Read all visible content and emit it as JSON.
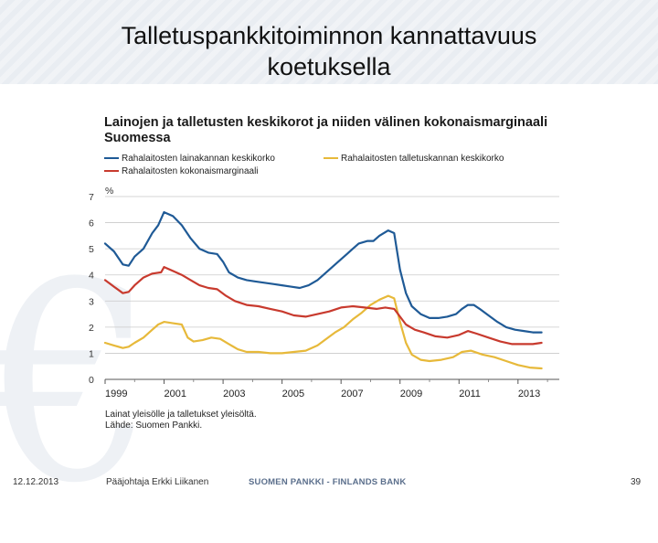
{
  "slide": {
    "title_line1": "Talletuspankkitoiminnon kannattavuus",
    "title_line2": "koetuksella",
    "date": "12.12.2013",
    "presenter": "Pääjohtaja Erkki Liikanen",
    "brand": "SUOMEN PANKKI - FINLANDS BANK",
    "page_number": "39"
  },
  "chart_data": {
    "type": "line",
    "title_line1": "Lainojen ja talletusten keskikorot ja niiden välinen kokonaismarginaali",
    "title_line2": "Suomessa",
    "ylabel": "%",
    "xlabel": "",
    "ylim": [
      0,
      7
    ],
    "yticks": [
      "0",
      "1",
      "2",
      "3",
      "4",
      "5",
      "6",
      "7"
    ],
    "xlim": [
      1999,
      2014.4
    ],
    "xticks": [
      "1999",
      "2001",
      "2003",
      "2005",
      "2007",
      "2009",
      "2011",
      "2013"
    ],
    "grid": true,
    "note_line1": "Lainat yleisölle ja talletukset yleisöltä.",
    "note_line2": "Lähde: Suomen Pankki.",
    "series": [
      {
        "name": "Rahalaitosten lainakannan keskikorko",
        "color": "#1f5a96",
        "x": [
          1999.0,
          1999.3,
          1999.6,
          1999.8,
          2000.0,
          2000.3,
          2000.6,
          2000.8,
          2001.0,
          2001.3,
          2001.6,
          2001.9,
          2002.2,
          2002.5,
          2002.8,
          2003.0,
          2003.2,
          2003.5,
          2003.8,
          2004.1,
          2004.4,
          2004.7,
          2005.0,
          2005.3,
          2005.6,
          2005.9,
          2006.2,
          2006.5,
          2006.8,
          2007.0,
          2007.2,
          2007.4,
          2007.6,
          2007.9,
          2008.1,
          2008.3,
          2008.6,
          2008.8,
          2009.0,
          2009.2,
          2009.4,
          2009.7,
          2010.0,
          2010.3,
          2010.6,
          2010.9,
          2011.1,
          2011.3,
          2011.5,
          2011.7,
          2012.0,
          2012.3,
          2012.6,
          2012.9,
          2013.2,
          2013.5,
          2013.8
        ],
        "values": [
          5.2,
          4.9,
          4.4,
          4.35,
          4.7,
          5.0,
          5.6,
          5.9,
          6.4,
          6.25,
          5.9,
          5.4,
          5.0,
          4.85,
          4.8,
          4.5,
          4.1,
          3.9,
          3.8,
          3.75,
          3.7,
          3.65,
          3.6,
          3.55,
          3.5,
          3.6,
          3.8,
          4.1,
          4.4,
          4.6,
          4.8,
          5.0,
          5.2,
          5.3,
          5.3,
          5.5,
          5.7,
          5.6,
          4.2,
          3.3,
          2.8,
          2.5,
          2.35,
          2.35,
          2.4,
          2.5,
          2.7,
          2.85,
          2.85,
          2.7,
          2.45,
          2.2,
          2.0,
          1.9,
          1.85,
          1.8,
          1.8
        ]
      },
      {
        "name": "Rahalaitosten talletuskannan keskikorko",
        "color": "#e7b93a",
        "x": [
          1999.0,
          1999.3,
          1999.6,
          1999.8,
          2000.0,
          2000.3,
          2000.6,
          2000.8,
          2001.0,
          2001.3,
          2001.6,
          2001.8,
          2002.0,
          2002.3,
          2002.6,
          2002.9,
          2003.2,
          2003.5,
          2003.8,
          2004.2,
          2004.6,
          2005.0,
          2005.4,
          2005.8,
          2006.2,
          2006.5,
          2006.8,
          2007.1,
          2007.4,
          2007.7,
          2008.0,
          2008.3,
          2008.6,
          2008.8,
          2009.0,
          2009.2,
          2009.4,
          2009.7,
          2010.0,
          2010.4,
          2010.8,
          2011.1,
          2011.4,
          2011.8,
          2012.2,
          2012.6,
          2013.0,
          2013.4,
          2013.8
        ],
        "values": [
          1.4,
          1.3,
          1.2,
          1.25,
          1.4,
          1.6,
          1.9,
          2.1,
          2.2,
          2.15,
          2.1,
          1.6,
          1.45,
          1.5,
          1.6,
          1.55,
          1.35,
          1.15,
          1.05,
          1.05,
          1.0,
          1.0,
          1.05,
          1.1,
          1.3,
          1.55,
          1.8,
          2.0,
          2.3,
          2.55,
          2.85,
          3.05,
          3.2,
          3.1,
          2.2,
          1.4,
          0.95,
          0.75,
          0.7,
          0.75,
          0.85,
          1.05,
          1.1,
          0.95,
          0.85,
          0.7,
          0.55,
          0.45,
          0.42
        ]
      },
      {
        "name": "Rahalaitosten kokonaismarginaali",
        "color": "#c83a2e",
        "x": [
          1999.0,
          1999.3,
          1999.6,
          1999.8,
          2000.0,
          2000.3,
          2000.6,
          2000.9,
          2001.0,
          2001.3,
          2001.6,
          2001.9,
          2002.2,
          2002.5,
          2002.8,
          2003.1,
          2003.4,
          2003.8,
          2004.2,
          2004.6,
          2005.0,
          2005.4,
          2005.8,
          2006.2,
          2006.6,
          2007.0,
          2007.4,
          2007.8,
          2008.2,
          2008.5,
          2008.8,
          2009.0,
          2009.2,
          2009.5,
          2009.8,
          2010.2,
          2010.6,
          2011.0,
          2011.3,
          2011.6,
          2012.0,
          2012.4,
          2012.8,
          2013.2,
          2013.5,
          2013.8
        ],
        "values": [
          3.8,
          3.55,
          3.3,
          3.35,
          3.6,
          3.9,
          4.05,
          4.1,
          4.3,
          4.15,
          4.0,
          3.8,
          3.6,
          3.5,
          3.45,
          3.2,
          3.0,
          2.85,
          2.8,
          2.7,
          2.6,
          2.45,
          2.4,
          2.5,
          2.6,
          2.75,
          2.8,
          2.75,
          2.7,
          2.75,
          2.7,
          2.4,
          2.1,
          1.9,
          1.8,
          1.65,
          1.6,
          1.7,
          1.85,
          1.75,
          1.6,
          1.45,
          1.35,
          1.35,
          1.35,
          1.4
        ]
      }
    ]
  }
}
